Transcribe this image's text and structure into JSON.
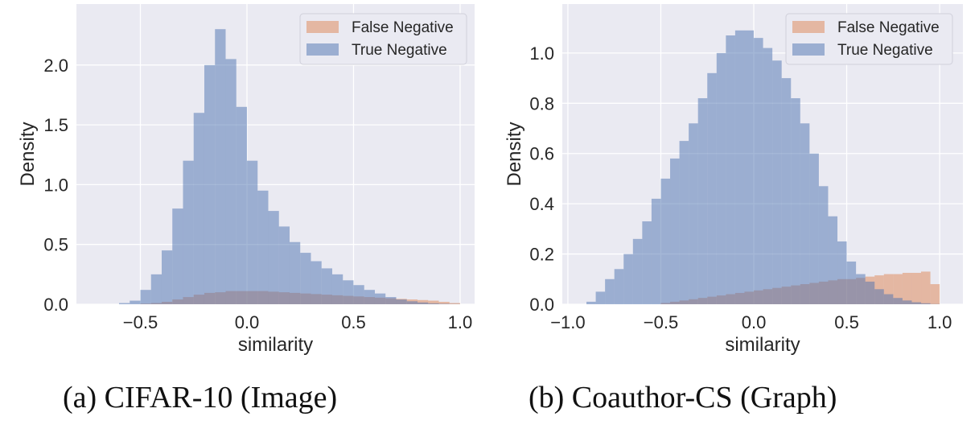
{
  "chart_data": [
    {
      "type": "histogram",
      "caption": "(a)  CIFAR-10 (Image)",
      "xlabel": "similarity",
      "ylabel": "Density",
      "xlim": [
        -0.8,
        1.068
      ],
      "ylim": [
        0,
        2.51
      ],
      "xticks": [
        -0.5,
        0.0,
        0.5,
        1.0
      ],
      "xtick_labels": [
        "−0.5",
        "0.0",
        "0.5",
        "1.0"
      ],
      "yticks": [
        0.0,
        0.5,
        1.0,
        1.5,
        2.0
      ],
      "ytick_labels": [
        "0.0",
        "0.5",
        "1.0",
        "1.5",
        "2.0"
      ],
      "grid": true,
      "legend_position": "top-right",
      "bin_start": -0.6,
      "bin_width": 0.05,
      "series": [
        {
          "name": "False Negative",
          "color": "#dd8452",
          "values": [
            0,
            0,
            0.005,
            0.01,
            0.02,
            0.04,
            0.06,
            0.08,
            0.095,
            0.1,
            0.11,
            0.11,
            0.11,
            0.11,
            0.105,
            0.1,
            0.095,
            0.09,
            0.085,
            0.08,
            0.075,
            0.07,
            0.065,
            0.06,
            0.055,
            0.05,
            0.045,
            0.04,
            0.035,
            0.03,
            0.02,
            0.01
          ]
        },
        {
          "name": "True Negative",
          "color": "#4c72b0",
          "values": [
            0.01,
            0.03,
            0.12,
            0.25,
            0.45,
            0.8,
            1.2,
            1.6,
            2.0,
            2.3,
            2.05,
            1.65,
            1.2,
            0.95,
            0.78,
            0.65,
            0.52,
            0.43,
            0.36,
            0.3,
            0.25,
            0.2,
            0.16,
            0.12,
            0.09,
            0.06,
            0.04,
            0.025,
            0.015,
            0.008,
            0.004,
            0.002
          ]
        }
      ]
    },
    {
      "type": "histogram",
      "caption": "(b)  Coauthor-CS (Graph)",
      "xlabel": "similarity",
      "ylabel": "Density",
      "xlim": [
        -1.03,
        1.125
      ],
      "ylim": [
        0,
        1.195
      ],
      "xticks": [
        -1.0,
        -0.5,
        0.0,
        0.5,
        1.0
      ],
      "xtick_labels": [
        "−1.0",
        "−0.5",
        "0.0",
        "0.5",
        "1.0"
      ],
      "yticks": [
        0.0,
        0.2,
        0.4,
        0.6,
        0.8,
        1.0
      ],
      "ytick_labels": [
        "0.0",
        "0.2",
        "0.4",
        "0.6",
        "0.8",
        "1.0"
      ],
      "grid": true,
      "legend_position": "top-right",
      "bin_start": -0.9,
      "bin_width": 0.05,
      "series": [
        {
          "name": "False Negative",
          "color": "#dd8452",
          "values": [
            0,
            0,
            0,
            0,
            0,
            0,
            0,
            0,
            0.005,
            0.01,
            0.015,
            0.02,
            0.025,
            0.03,
            0.035,
            0.04,
            0.045,
            0.05,
            0.055,
            0.06,
            0.065,
            0.07,
            0.075,
            0.08,
            0.085,
            0.09,
            0.095,
            0.1,
            0.1,
            0.105,
            0.11,
            0.115,
            0.12,
            0.12,
            0.125,
            0.125,
            0.13,
            0.08
          ]
        },
        {
          "name": "True Negative",
          "color": "#4c72b0",
          "values": [
            0.01,
            0.05,
            0.1,
            0.14,
            0.2,
            0.26,
            0.33,
            0.42,
            0.5,
            0.58,
            0.65,
            0.72,
            0.82,
            0.92,
            1.0,
            1.07,
            1.09,
            1.09,
            1.06,
            1.02,
            0.97,
            0.9,
            0.82,
            0.72,
            0.6,
            0.47,
            0.35,
            0.25,
            0.17,
            0.12,
            0.09,
            0.06,
            0.04,
            0.025,
            0.015,
            0.008,
            0.004,
            0.001
          ]
        }
      ]
    }
  ]
}
